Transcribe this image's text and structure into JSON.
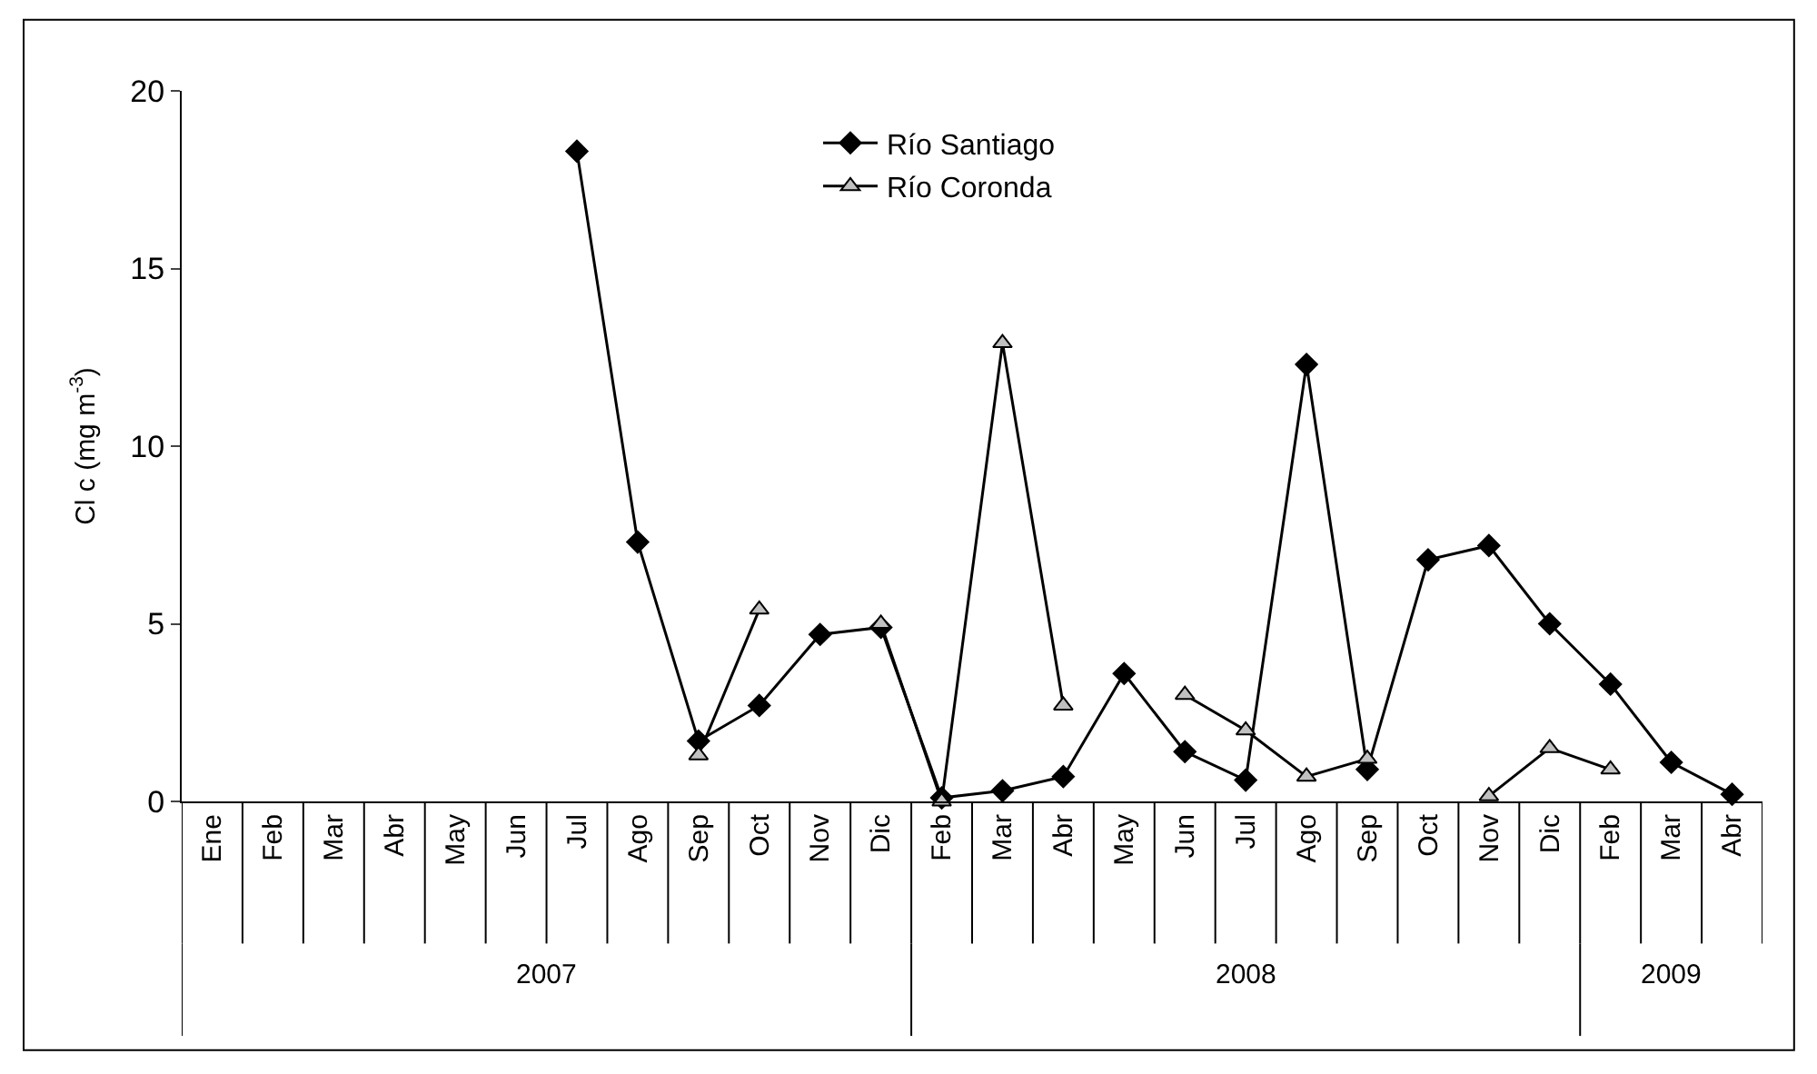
{
  "chart_data": {
    "type": "line",
    "ylabel": "Cl c (mg m$^{-3}$)",
    "categories": [
      "Ene",
      "Feb",
      "Mar",
      "Abr",
      "May",
      "Jun",
      "Jul",
      "Ago",
      "Sep",
      "Oct",
      "Nov",
      "Dic",
      "Feb",
      "Mar",
      "Abr",
      "May",
      "Jun",
      "Jul",
      "Ago",
      "Sep",
      "Oct",
      "Nov",
      "Dic",
      "Feb",
      "Mar",
      "Abr"
    ],
    "series": [
      {
        "name": "Río Santiago",
        "color": "#000000",
        "marker": "diamond",
        "values": [
          null,
          null,
          null,
          null,
          null,
          null,
          18.3,
          7.3,
          1.7,
          2.7,
          4.7,
          4.9,
          0.1,
          0.3,
          0.7,
          3.6,
          1.4,
          0.6,
          12.3,
          0.9,
          6.8,
          7.2,
          5.0,
          3.3,
          1.1,
          0.2
        ]
      },
      {
        "name": "Río Coronda",
        "color": "#c0c0c0",
        "marker": "triangle",
        "values": [
          null,
          null,
          null,
          null,
          null,
          null,
          null,
          null,
          1.3,
          5.4,
          null,
          5.0,
          0.0,
          12.9,
          2.7,
          null,
          3.0,
          2.0,
          0.7,
          1.2,
          null,
          0.15,
          1.5,
          0.9,
          null,
          null
        ]
      }
    ],
    "annotations": [
      "2007",
      "2008",
      "2009"
    ],
    "ylim": [
      0,
      20
    ],
    "yticks": [
      0,
      5,
      10,
      15,
      20
    ],
    "legend": "top"
  }
}
